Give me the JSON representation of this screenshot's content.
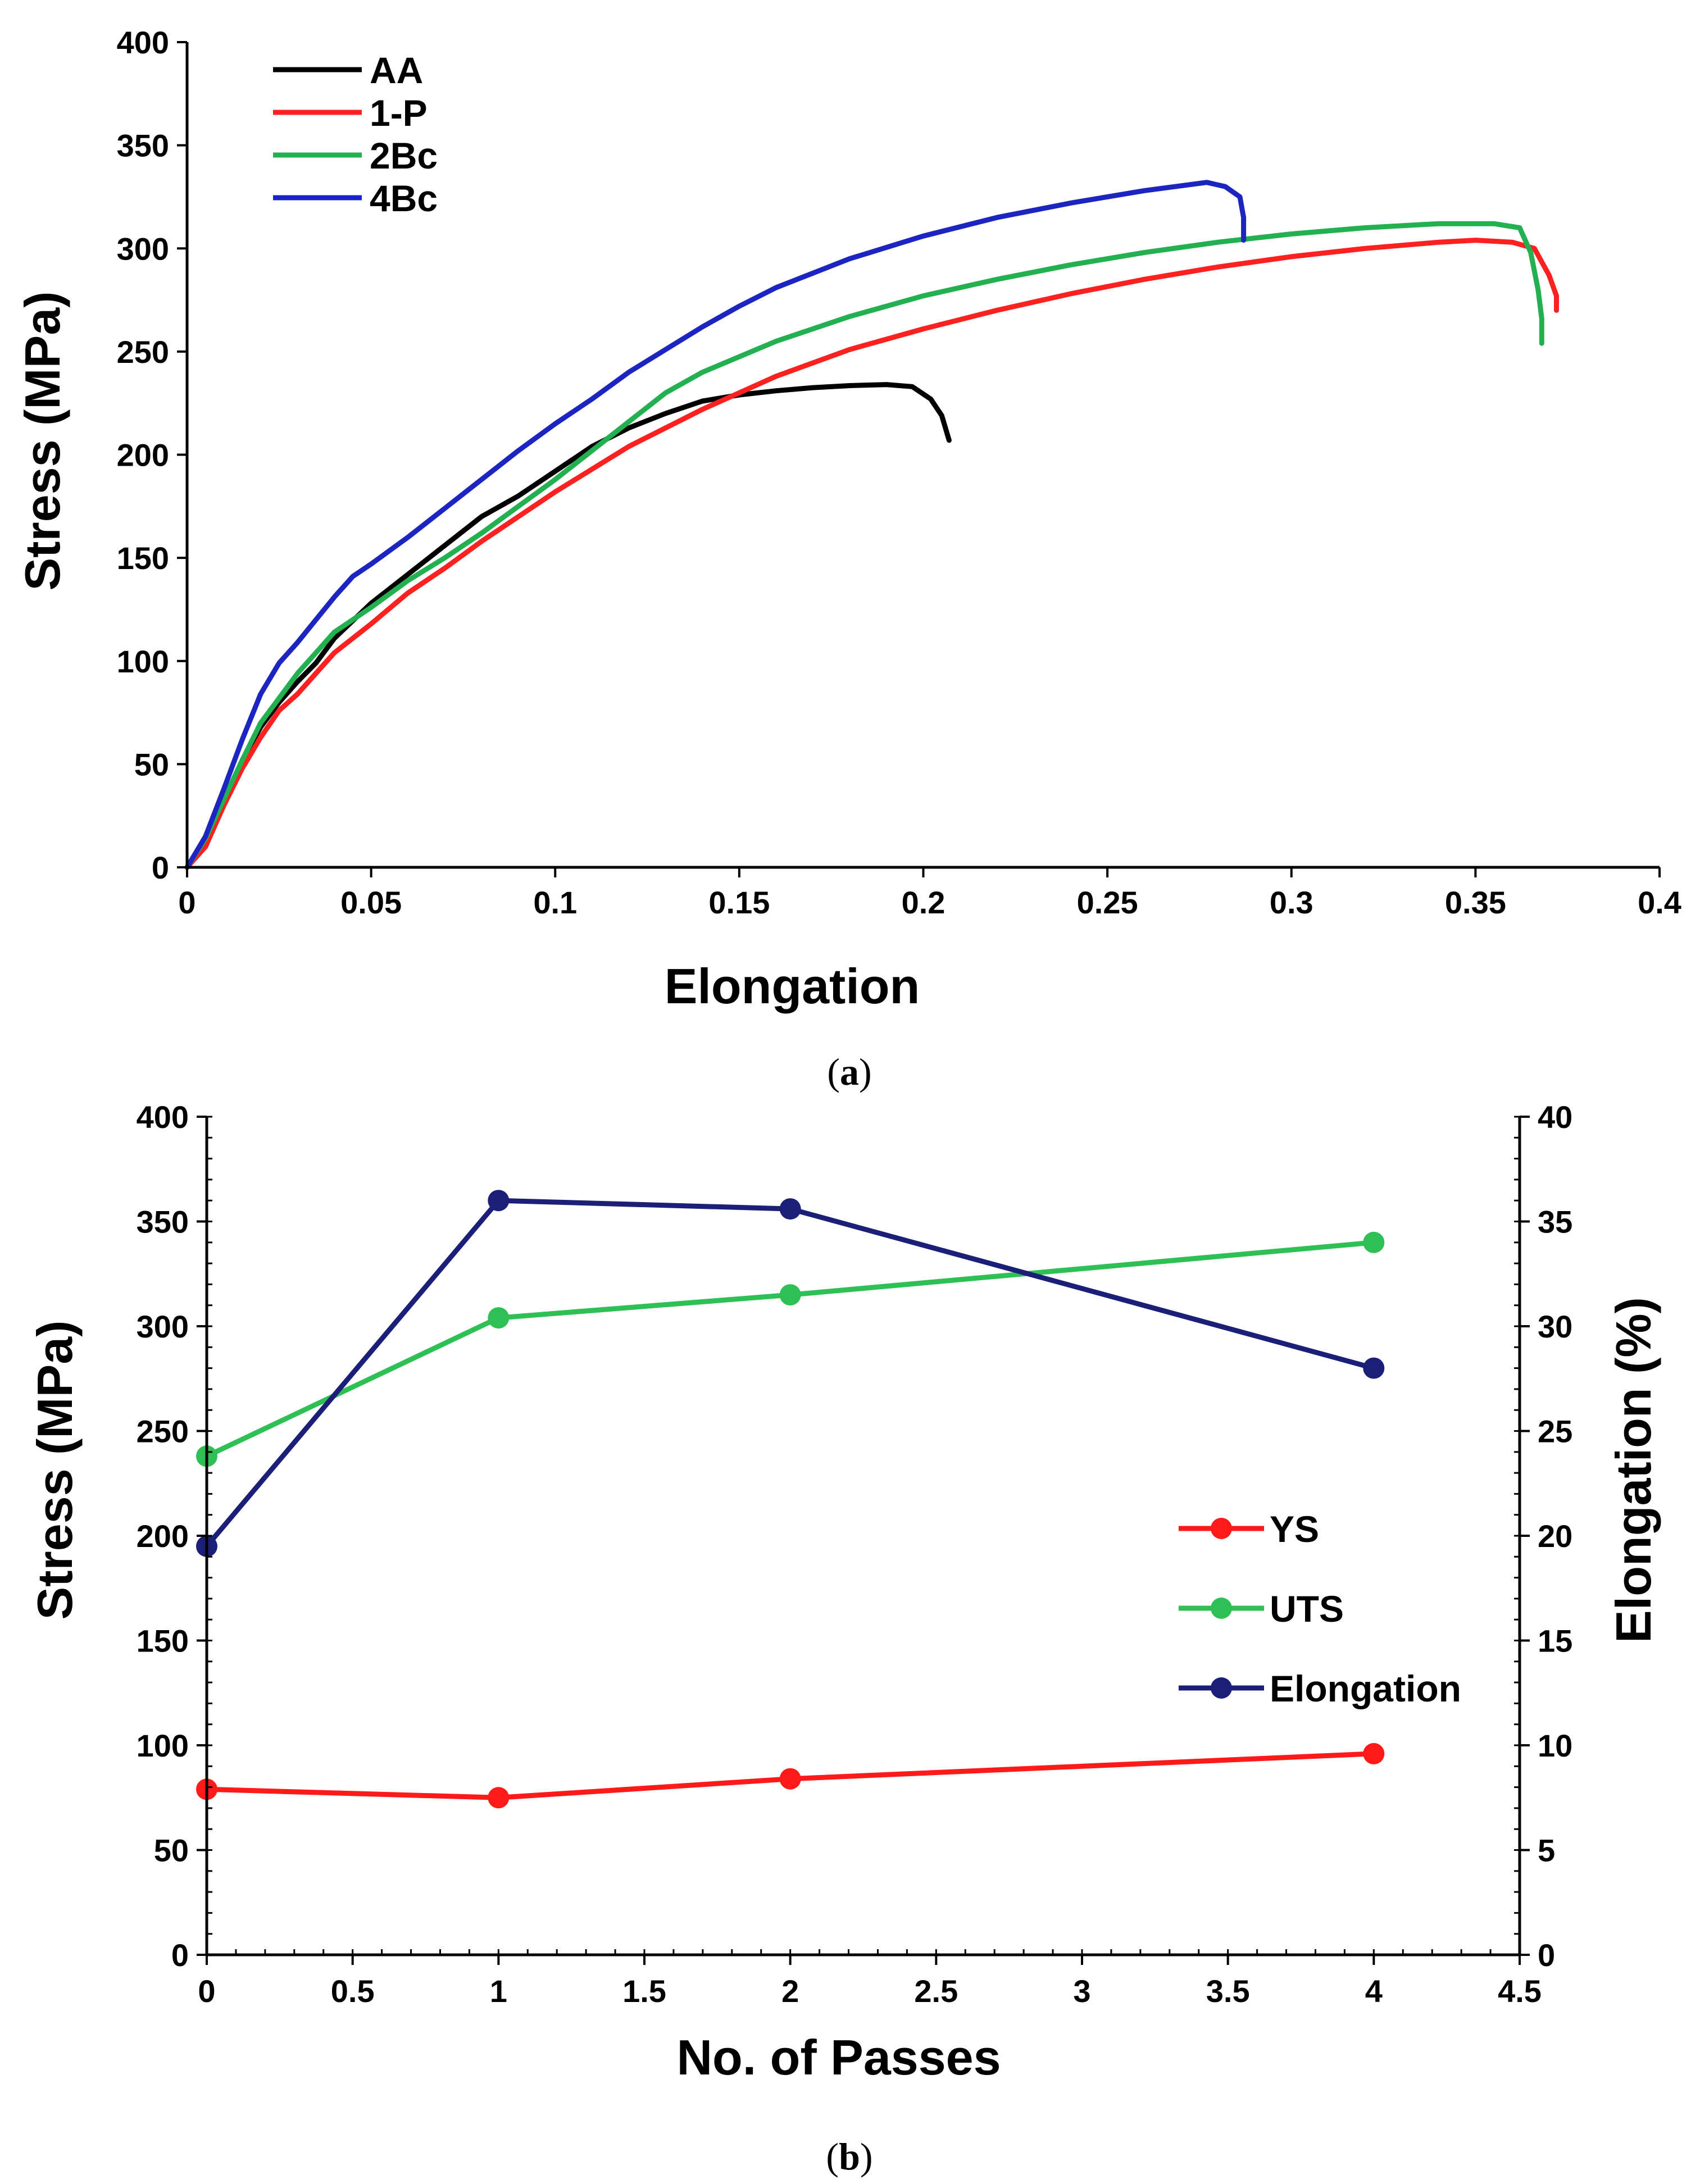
{
  "chart_data": [
    {
      "type": "line",
      "panel": "a",
      "caption": {
        "open": "(",
        "letter": "a",
        "close": ")"
      },
      "xlabel": "Elongation",
      "ylabel": "Stress (MPa)",
      "xlim": [
        0,
        0.4
      ],
      "ylim": [
        0,
        400
      ],
      "xticks": [
        "0",
        "0.05",
        "0.1",
        "0.15",
        "0.2",
        "0.25",
        "0.3",
        "0.35",
        "0.4"
      ],
      "yticks": [
        "0",
        "50",
        "100",
        "150",
        "200",
        "250",
        "300",
        "350",
        "400"
      ],
      "legend_position": "top-left",
      "series": [
        {
          "name": "AA",
          "color": "#000000",
          "points": [
            [
              0,
              0
            ],
            [
              0.005,
              12
            ],
            [
              0.01,
              32
            ],
            [
              0.015,
              52
            ],
            [
              0.02,
              68
            ],
            [
              0.025,
              80
            ],
            [
              0.03,
              90
            ],
            [
              0.035,
              99
            ],
            [
              0.04,
              111
            ],
            [
              0.05,
              128
            ],
            [
              0.06,
              142
            ],
            [
              0.07,
              156
            ],
            [
              0.08,
              170
            ],
            [
              0.09,
              180
            ],
            [
              0.1,
              192
            ],
            [
              0.11,
              204
            ],
            [
              0.12,
              213
            ],
            [
              0.13,
              220
            ],
            [
              0.14,
              226
            ],
            [
              0.15,
              229
            ],
            [
              0.16,
              231
            ],
            [
              0.17,
              232.5
            ],
            [
              0.18,
              233.5
            ],
            [
              0.19,
              234
            ],
            [
              0.197,
              233
            ],
            [
              0.202,
              227
            ],
            [
              0.205,
              219
            ],
            [
              0.207,
              207
            ]
          ]
        },
        {
          "name": "1-P",
          "color": "#ff2020",
          "points": [
            [
              0,
              0
            ],
            [
              0.005,
              10
            ],
            [
              0.01,
              30
            ],
            [
              0.015,
              48
            ],
            [
              0.02,
              63
            ],
            [
              0.025,
              76
            ],
            [
              0.03,
              84
            ],
            [
              0.035,
              94
            ],
            [
              0.04,
              104
            ],
            [
              0.05,
              118
            ],
            [
              0.06,
              133
            ],
            [
              0.07,
              145
            ],
            [
              0.08,
              158
            ],
            [
              0.09,
              170
            ],
            [
              0.1,
              182
            ],
            [
              0.12,
              204
            ],
            [
              0.14,
              222
            ],
            [
              0.16,
              238
            ],
            [
              0.18,
              251
            ],
            [
              0.2,
              261
            ],
            [
              0.22,
              270
            ],
            [
              0.24,
              278
            ],
            [
              0.26,
              285
            ],
            [
              0.28,
              291
            ],
            [
              0.3,
              296
            ],
            [
              0.32,
              300
            ],
            [
              0.34,
              303
            ],
            [
              0.35,
              304
            ],
            [
              0.36,
              303
            ],
            [
              0.366,
              300
            ],
            [
              0.37,
              287
            ],
            [
              0.372,
              277
            ],
            [
              0.372,
              270
            ]
          ]
        },
        {
          "name": "2Bc",
          "color": "#22b050",
          "points": [
            [
              0,
              0
            ],
            [
              0.005,
              14
            ],
            [
              0.01,
              33
            ],
            [
              0.015,
              52
            ],
            [
              0.02,
              70
            ],
            [
              0.025,
              82
            ],
            [
              0.03,
              94
            ],
            [
              0.035,
              104
            ],
            [
              0.04,
              114
            ],
            [
              0.05,
              126
            ],
            [
              0.06,
              139
            ],
            [
              0.07,
              150
            ],
            [
              0.08,
              162
            ],
            [
              0.09,
              175
            ],
            [
              0.1,
              188
            ],
            [
              0.11,
              202
            ],
            [
              0.12,
              216
            ],
            [
              0.13,
              230
            ],
            [
              0.14,
              240
            ],
            [
              0.16,
              255
            ],
            [
              0.18,
              267
            ],
            [
              0.2,
              277
            ],
            [
              0.22,
              285
            ],
            [
              0.24,
              292
            ],
            [
              0.26,
              298
            ],
            [
              0.28,
              303
            ],
            [
              0.3,
              307
            ],
            [
              0.32,
              310
            ],
            [
              0.34,
              312
            ],
            [
              0.355,
              312
            ],
            [
              0.362,
              310
            ],
            [
              0.365,
              298
            ],
            [
              0.367,
              280
            ],
            [
              0.368,
              266
            ],
            [
              0.368,
              254
            ]
          ]
        },
        {
          "name": "4Bc",
          "color": "#1c24c2",
          "points": [
            [
              0,
              0
            ],
            [
              0.005,
              15
            ],
            [
              0.01,
              38
            ],
            [
              0.015,
              62
            ],
            [
              0.02,
              84
            ],
            [
              0.025,
              99
            ],
            [
              0.03,
              109
            ],
            [
              0.035,
              120
            ],
            [
              0.04,
              131
            ],
            [
              0.045,
              141
            ],
            [
              0.05,
              147
            ],
            [
              0.06,
              160
            ],
            [
              0.07,
              174
            ],
            [
              0.08,
              188
            ],
            [
              0.09,
              202
            ],
            [
              0.1,
              215
            ],
            [
              0.11,
              227
            ],
            [
              0.12,
              240
            ],
            [
              0.13,
              251
            ],
            [
              0.14,
              262
            ],
            [
              0.15,
              272
            ],
            [
              0.16,
              281
            ],
            [
              0.18,
              295
            ],
            [
              0.2,
              306
            ],
            [
              0.22,
              315
            ],
            [
              0.24,
              322
            ],
            [
              0.26,
              328
            ],
            [
              0.277,
              332
            ],
            [
              0.282,
              330
            ],
            [
              0.286,
              325
            ],
            [
              0.287,
              315
            ],
            [
              0.287,
              304
            ]
          ]
        }
      ]
    },
    {
      "type": "line",
      "panel": "b",
      "caption": {
        "open": "(",
        "letter": "b",
        "close": ")"
      },
      "xlabel": "No. of Passes",
      "ylabel": "Stress (MPa)",
      "y2label": "Elongation (%)",
      "xlim": [
        0,
        4.5
      ],
      "ylim": [
        0,
        400
      ],
      "y2lim": [
        0,
        40
      ],
      "xticks": [
        "0",
        "0.5",
        "1",
        "1.5",
        "2",
        "2.5",
        "3",
        "3.5",
        "4",
        "4.5"
      ],
      "yticks": [
        "0",
        "50",
        "100",
        "150",
        "200",
        "250",
        "300",
        "350",
        "400"
      ],
      "y2ticks": [
        "0",
        "5",
        "10",
        "15",
        "20",
        "25",
        "30",
        "35",
        "40"
      ],
      "legend_position": "center-right",
      "x": [
        0,
        1,
        2,
        4
      ],
      "series": [
        {
          "name": "YS",
          "axis": "left",
          "color": "#ff1a1a",
          "values": [
            79,
            75,
            84,
            96
          ]
        },
        {
          "name": "UTS",
          "axis": "left",
          "color": "#2fc055",
          "values": [
            238,
            304,
            315,
            340
          ]
        },
        {
          "name": "Elongation",
          "axis": "right",
          "color": "#1b1f78",
          "values": [
            19.5,
            36,
            35.6,
            28
          ]
        }
      ]
    }
  ]
}
